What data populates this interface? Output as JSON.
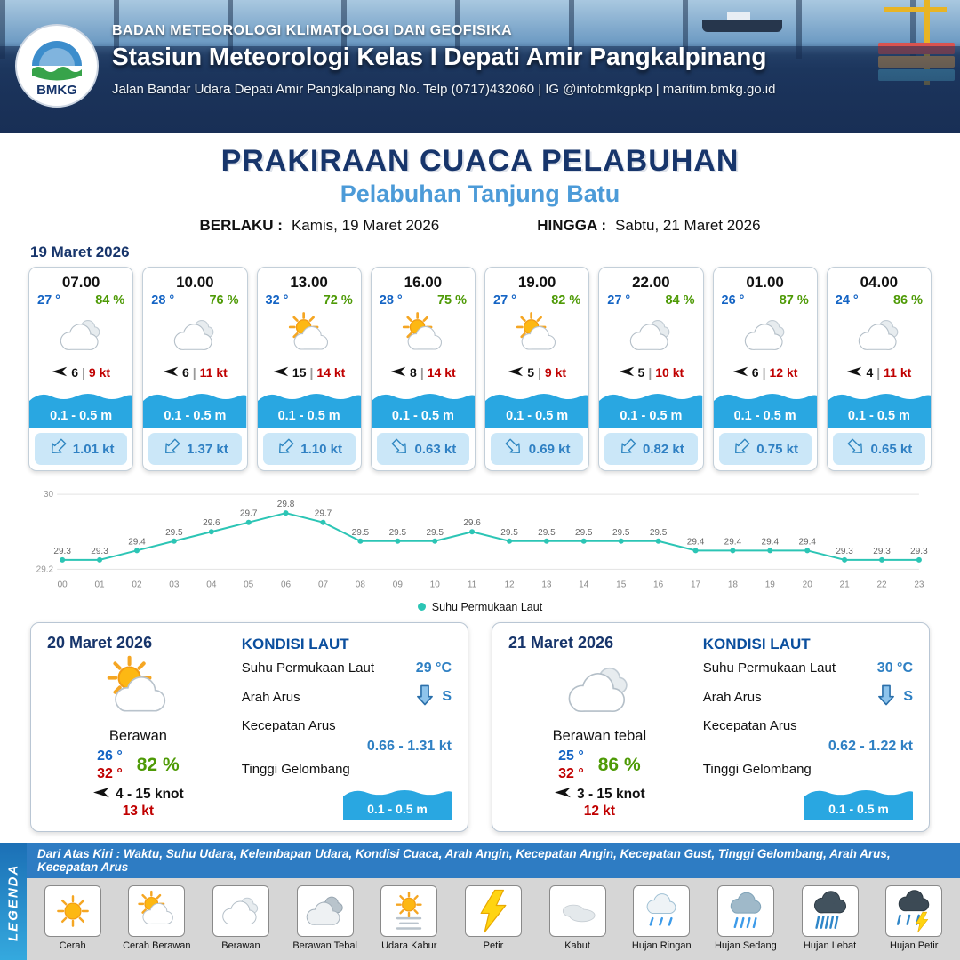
{
  "header": {
    "logo_text": "BMKG",
    "org": "BADAN METEOROLOGI KLIMATOLOGI DAN GEOFISIKA",
    "station": "Stasiun Meteorologi Kelas I Depati Amir Pangkalpinang",
    "address": "Jalan Bandar Udara Depati Amir Pangkalpinang No. Telp (0717)432060 | IG @infobmkgpkp | maritim.bmkg.go.id"
  },
  "title": "PRAKIRAAN CUACA PELABUHAN",
  "subtitle": "Pelabuhan Tanjung Batu",
  "validity": {
    "berlaku_label": "BERLAKU :",
    "berlaku_value": "Kamis, 19 Maret 2026",
    "hingga_label": "HINGGA :",
    "hingga_value": "Sabtu, 21 Maret 2026"
  },
  "forecast_date": "19 Maret 2026",
  "forecast_cards": [
    {
      "time": "07.00",
      "temp": "27 °",
      "humidity": "84 %",
      "icon": "berawan",
      "wind": "6",
      "gust": "9 kt",
      "wave": "0.1 - 0.5 m",
      "current": "1.01 kt",
      "current_dir": "SW"
    },
    {
      "time": "10.00",
      "temp": "28 °",
      "humidity": "76 %",
      "icon": "berawan",
      "wind": "6",
      "gust": "11 kt",
      "wave": "0.1 - 0.5 m",
      "current": "1.37 kt",
      "current_dir": "SW"
    },
    {
      "time": "13.00",
      "temp": "32 °",
      "humidity": "72 %",
      "icon": "cerah-berawan",
      "wind": "15",
      "gust": "14 kt",
      "wave": "0.1 - 0.5 m",
      "current": "1.10 kt",
      "current_dir": "SW"
    },
    {
      "time": "16.00",
      "temp": "28 °",
      "humidity": "75 %",
      "icon": "cerah-berawan",
      "wind": "8",
      "gust": "14 kt",
      "wave": "0.1 - 0.5 m",
      "current": "0.63 kt",
      "current_dir": "SE"
    },
    {
      "time": "19.00",
      "temp": "27 °",
      "humidity": "82 %",
      "icon": "cerah-berawan",
      "wind": "5",
      "gust": "9 kt",
      "wave": "0.1 - 0.5 m",
      "current": "0.69 kt",
      "current_dir": "SE"
    },
    {
      "time": "22.00",
      "temp": "27 °",
      "humidity": "84 %",
      "icon": "berawan",
      "wind": "5",
      "gust": "10 kt",
      "wave": "0.1 - 0.5 m",
      "current": "0.82 kt",
      "current_dir": "SW"
    },
    {
      "time": "01.00",
      "temp": "26 °",
      "humidity": "87 %",
      "icon": "berawan",
      "wind": "6",
      "gust": "12 kt",
      "wave": "0.1 - 0.5 m",
      "current": "0.75 kt",
      "current_dir": "SW"
    },
    {
      "time": "04.00",
      "temp": "24 °",
      "humidity": "86 %",
      "icon": "berawan",
      "wind": "4",
      "gust": "11 kt",
      "wave": "0.1 - 0.5 m",
      "current": "0.65 kt",
      "current_dir": "SE"
    }
  ],
  "chart_data": {
    "type": "line",
    "x": [
      "00",
      "01",
      "02",
      "03",
      "04",
      "05",
      "06",
      "07",
      "08",
      "09",
      "10",
      "11",
      "12",
      "13",
      "14",
      "15",
      "16",
      "17",
      "18",
      "19",
      "20",
      "21",
      "22",
      "23"
    ],
    "series": [
      {
        "name": "Suhu Permukaan Laut",
        "values": [
          29.3,
          29.3,
          29.4,
          29.5,
          29.6,
          29.7,
          29.8,
          29.7,
          29.5,
          29.5,
          29.5,
          29.6,
          29.5,
          29.5,
          29.5,
          29.5,
          29.5,
          29.4,
          29.4,
          29.4,
          29.4,
          29.3,
          29.3,
          29.3
        ]
      }
    ],
    "ylim": [
      29.2,
      30
    ],
    "yticks": [
      "30",
      "29.2"
    ],
    "legend_position": "bottom",
    "line_color": "#2CC5B5",
    "grid": true
  },
  "days": [
    {
      "date": "20 Maret 2026",
      "icon": "cerah-berawan",
      "condition": "Berawan",
      "temp_min": "26 °",
      "temp_max": "32 °",
      "humidity": "82 %",
      "wind": "4 - 15 knot",
      "gust": "13 kt",
      "sea": {
        "title": "KONDISI LAUT",
        "sst_label": "Suhu Permukaan Laut",
        "sst": "29 °C",
        "current_dir_label": "Arah Arus",
        "current_dir": "S",
        "current_speed_label": "Kecepatan Arus",
        "current_speed": "0.66 - 1.31 kt",
        "wave_label": "Tinggi Gelombang",
        "wave": "0.1 - 0.5 m"
      }
    },
    {
      "date": "21 Maret 2026",
      "icon": "berawan",
      "condition": "Berawan tebal",
      "temp_min": "25 °",
      "temp_max": "32 °",
      "humidity": "86 %",
      "wind": "3 - 15 knot",
      "gust": "12 kt",
      "sea": {
        "title": "KONDISI LAUT",
        "sst_label": "Suhu Permukaan Laut",
        "sst": "30 °C",
        "current_dir_label": "Arah Arus",
        "current_dir": "S",
        "current_speed_label": "Kecepatan Arus",
        "current_speed": "0.62 - 1.22 kt",
        "wave_label": "Tinggi Gelombang",
        "wave": "0.1 - 0.5 m"
      }
    }
  ],
  "legend": {
    "title_vertical": "LEGENDA",
    "note": "Dari Atas Kiri : Waktu, Suhu Udara, Kelembapan Udara, Kondisi Cuaca, Arah Angin, Kecepatan Angin, Kecepatan Gust, Tinggi Gelombang, Arah Arus, Kecepatan Arus",
    "items": [
      {
        "label": "Cerah",
        "icon": "cerah"
      },
      {
        "label": "Cerah Berawan",
        "icon": "cerah-berawan"
      },
      {
        "label": "Berawan",
        "icon": "berawan"
      },
      {
        "label": "Berawan Tebal",
        "icon": "berawan-tebal"
      },
      {
        "label": "Udara Kabur",
        "icon": "udara-kabur"
      },
      {
        "label": "Petir",
        "icon": "petir"
      },
      {
        "label": "Kabut",
        "icon": "kabut"
      },
      {
        "label": "Hujan Ringan",
        "icon": "hujan-ringan"
      },
      {
        "label": "Hujan Sedang",
        "icon": "hujan-sedang"
      },
      {
        "label": "Hujan Lebat",
        "icon": "hujan-lebat"
      },
      {
        "label": "Hujan Petir",
        "icon": "hujan-petir"
      }
    ]
  },
  "colors": {
    "navy": "#17356B",
    "accent_blue": "#4C9BD8",
    "wave_blue": "#29A7E1",
    "temp_blue": "#1464C4",
    "humidity_green": "#4E9A06",
    "gust_red": "#C00000",
    "current_blue": "#2F80C3",
    "line_teal": "#2CC5B5"
  }
}
